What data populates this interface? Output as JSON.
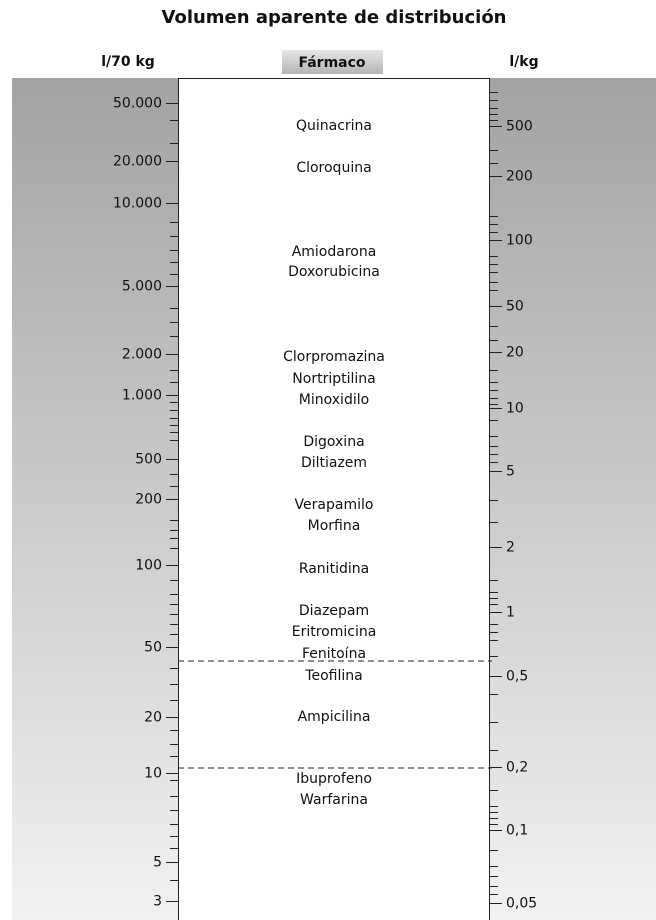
{
  "title": "Volumen aparente de distribución",
  "headers": {
    "left": "l/70 kg",
    "center": "Fármaco",
    "right": "l/kg"
  },
  "left_scale": [
    "50.000",
    "20.000",
    "10.000",
    "5.000",
    "2.000",
    "1.000",
    "500",
    "200",
    "100",
    "50",
    "20",
    "10",
    "5",
    "3"
  ],
  "right_scale": [
    "500",
    "200",
    "100",
    "50",
    "20",
    "10",
    "5",
    "2",
    "1",
    "0,5",
    "0,2",
    "0,1",
    "0,05"
  ],
  "drugs": [
    "Quinacrina",
    "Cloroquina",
    "Amiodarona",
    "Doxorubicina",
    "Clorpromazina",
    "Nortriptilina",
    "Minoxidilo",
    "Digoxina",
    "Diltiazem",
    "Verapamilo",
    "Morfina",
    "Ranitidina",
    "Diazepam",
    "Eritromicina",
    "Fenitoína",
    "Teofilina",
    "Ampicilina",
    "Ibuprofeno",
    "Warfarina"
  ]
}
